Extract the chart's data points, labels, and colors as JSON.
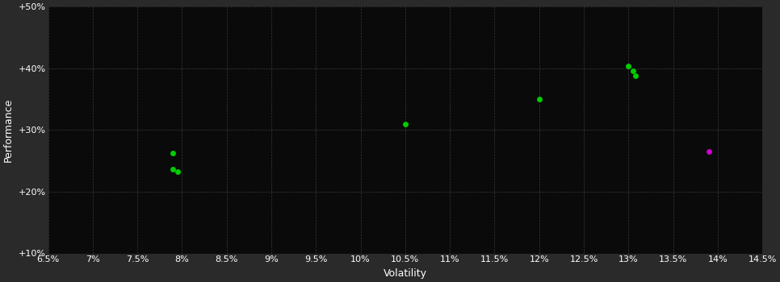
{
  "background_color": "#2a2a2a",
  "plot_bg_color": "#0a0a0a",
  "grid_color": "#3a3a3a",
  "xlabel": "Volatility",
  "ylabel": "Performance",
  "xlim": [
    0.065,
    0.145
  ],
  "ylim": [
    0.1,
    0.5
  ],
  "xticks": [
    0.065,
    0.07,
    0.075,
    0.08,
    0.085,
    0.09,
    0.095,
    0.1,
    0.105,
    0.11,
    0.115,
    0.12,
    0.125,
    0.13,
    0.135,
    0.14,
    0.145
  ],
  "xtick_labels": [
    "6.5%",
    "7%",
    "7.5%",
    "8%",
    "8.5%",
    "9%",
    "9.5%",
    "10%",
    "10.5%",
    "11%",
    "11.5%",
    "12%",
    "12.5%",
    "13%",
    "13.5%",
    "14%",
    "14.5%"
  ],
  "yticks": [
    0.1,
    0.2,
    0.3,
    0.4,
    0.5
  ],
  "ytick_labels": [
    "+10%",
    "+20%",
    "+30%",
    "+40%",
    "+50%"
  ],
  "green_points": [
    [
      0.079,
      0.262
    ],
    [
      0.079,
      0.237
    ],
    [
      0.0795,
      0.233
    ],
    [
      0.105,
      0.31
    ],
    [
      0.12,
      0.35
    ],
    [
      0.13,
      0.403
    ],
    [
      0.1305,
      0.396
    ],
    [
      0.1308,
      0.388
    ]
  ],
  "magenta_points": [
    [
      0.139,
      0.265
    ]
  ],
  "green_color": "#00cc00",
  "magenta_color": "#cc00cc",
  "marker_size": 5,
  "tick_fontsize": 8,
  "label_fontsize": 9
}
